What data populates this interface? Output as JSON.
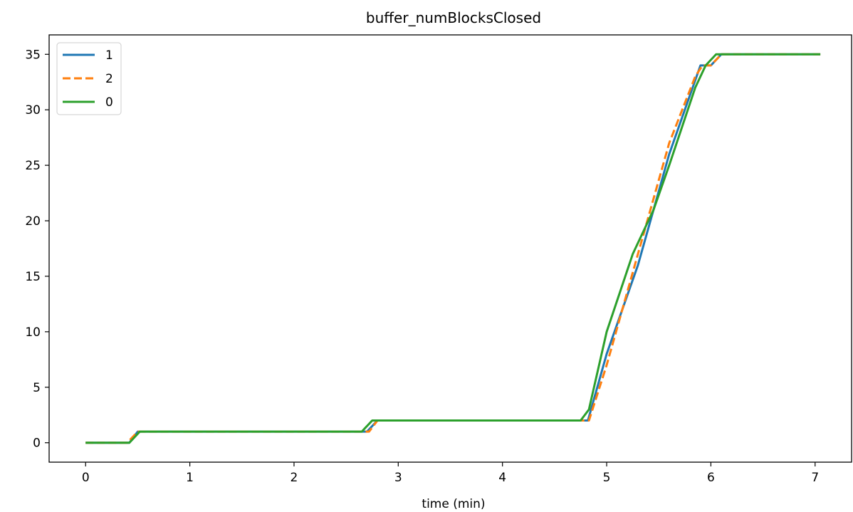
{
  "chart_data": {
    "type": "line",
    "title": "buffer_numBlocksClosed",
    "xlabel": "time (min)",
    "ylabel": "",
    "xlim": [
      -0.35,
      7.35
    ],
    "ylim": [
      -1.75,
      36.75
    ],
    "xticks": [
      0,
      1,
      2,
      3,
      4,
      5,
      6,
      7
    ],
    "yticks": [
      0,
      5,
      10,
      15,
      20,
      25,
      30,
      35
    ],
    "grid": false,
    "legend_position": "top-left",
    "series": [
      {
        "name": "1",
        "color": "#1f77b4",
        "dash": "solid",
        "x": [
          0,
          0.42,
          0.5,
          2.7,
          2.8,
          4.82,
          5.0,
          5.3,
          5.6,
          5.9,
          6.0,
          6.1,
          7.05
        ],
        "y": [
          0,
          0,
          1,
          1,
          2,
          2,
          8,
          16,
          26,
          34,
          34,
          35,
          35
        ]
      },
      {
        "name": "2",
        "color": "#ff7f0e",
        "dash": "dashed",
        "x": [
          0,
          0.4,
          0.5,
          2.72,
          2.8,
          4.83,
          5.0,
          5.3,
          5.6,
          5.85,
          5.92,
          6.0,
          6.1,
          7.05
        ],
        "y": [
          0,
          0,
          1,
          1,
          2,
          2,
          7,
          17,
          27,
          33,
          34,
          34,
          35,
          35
        ]
      },
      {
        "name": "0",
        "color": "#2ca02c",
        "dash": "solid",
        "x": [
          0,
          0.42,
          0.52,
          2.65,
          2.75,
          4.75,
          4.83,
          5.0,
          5.25,
          5.45,
          5.6,
          5.85,
          5.95,
          6.05,
          7.05
        ],
        "y": [
          0,
          0,
          1,
          1,
          2,
          2,
          3,
          10,
          17,
          21,
          25,
          32,
          34,
          35,
          35
        ]
      }
    ]
  }
}
